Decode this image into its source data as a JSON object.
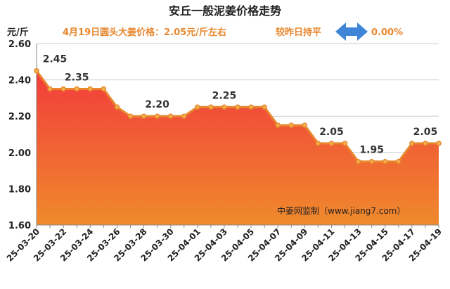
{
  "chart_data": {
    "type": "area",
    "title": "安丘一般泥姜价格走势",
    "subtitle": "4月19日圆头大姜价格：2.05元/斤左右",
    "change_label": "较昨日持平",
    "change_value": "0.00%",
    "ylabel": "元/斤",
    "xlabel": "",
    "ylim": [
      1.6,
      2.6
    ],
    "yticks": [
      "1.60",
      "1.80",
      "2.00",
      "2.20",
      "2.40",
      "2.60"
    ],
    "watermark": "中姜网监制（www.jiang7.com）",
    "x": [
      "25-03-20",
      "25-03-21",
      "25-03-22",
      "25-03-23",
      "25-03-24",
      "25-03-25",
      "25-03-26",
      "25-03-27",
      "25-03-28",
      "25-03-29",
      "25-03-30",
      "25-03-31",
      "25-04-01",
      "25-04-02",
      "25-04-03",
      "25-04-04",
      "25-04-05",
      "25-04-06",
      "25-04-07",
      "25-04-08",
      "25-04-09",
      "25-04-10",
      "25-04-11",
      "25-04-12",
      "25-04-13",
      "25-04-14",
      "25-04-15",
      "25-04-16",
      "25-04-17",
      "25-04-18",
      "25-04-19"
    ],
    "xtick_labels": [
      "25-03-20",
      "25-03-22",
      "25-03-24",
      "25-03-26",
      "25-03-28",
      "25-03-30",
      "25-04-01",
      "25-04-03",
      "25-04-05",
      "25-04-07",
      "25-04-09",
      "25-04-11",
      "25-04-13",
      "25-04-15",
      "25-04-17",
      "25-04-19"
    ],
    "values": [
      2.45,
      2.35,
      2.35,
      2.35,
      2.35,
      2.35,
      2.25,
      2.2,
      2.2,
      2.2,
      2.2,
      2.2,
      2.25,
      2.25,
      2.25,
      2.25,
      2.25,
      2.25,
      2.15,
      2.15,
      2.15,
      2.05,
      2.05,
      2.05,
      1.95,
      1.95,
      1.95,
      1.95,
      2.05,
      2.05,
      2.05
    ],
    "data_labels": [
      {
        "index": 0,
        "text": "2.45"
      },
      {
        "index": 3,
        "text": "2.35"
      },
      {
        "index": 9,
        "text": "2.20"
      },
      {
        "index": 14,
        "text": "2.25"
      },
      {
        "index": 22,
        "text": "2.05"
      },
      {
        "index": 25,
        "text": "1.95"
      },
      {
        "index": 29,
        "text": "2.05"
      }
    ],
    "colors": {
      "line": "#e8872e",
      "marker_fill": "#f3b24d",
      "area_top": "#f23c3c",
      "area_bottom": "#ef8a2c",
      "title": "#222222",
      "subtitle": "#e8872e",
      "arrow": "#3f86d8",
      "grid": "#cccccc"
    }
  }
}
